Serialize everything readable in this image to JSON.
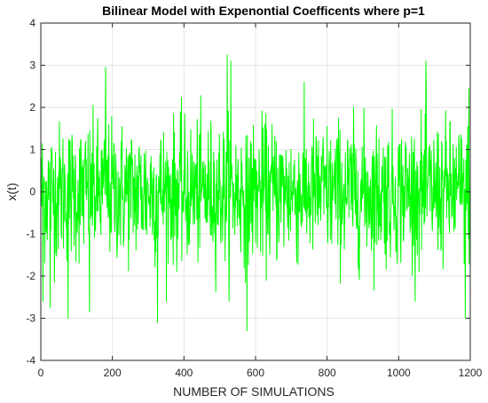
{
  "chart_data": {
    "type": "line",
    "title": "Bilinear Model with Expenontial Coefficents where p=1",
    "xlabel": "NUMBER OF SIMULATIONS",
    "ylabel": "x(t)",
    "xlim": [
      0,
      1200
    ],
    "ylim": [
      -4,
      4
    ],
    "xticks": [
      0,
      200,
      400,
      600,
      800,
      1000,
      1200
    ],
    "yticks": [
      -4,
      -3,
      -2,
      -1,
      0,
      1,
      2,
      3,
      4
    ],
    "xtick_labels": [
      "0",
      "200",
      "400",
      "600",
      "800",
      "1000",
      "1200"
    ],
    "ytick_labels": [
      "-4",
      "-3",
      "-2",
      "-1",
      "0",
      "1",
      "2",
      "3",
      "4"
    ],
    "grid": true,
    "legend": "none",
    "series_color": "#00ff00",
    "n_points": 1200,
    "notable_points": [
      {
        "x": 5,
        "y": -2.6
      },
      {
        "x": 25,
        "y": -2.75
      },
      {
        "x": 75,
        "y": -3.0
      },
      {
        "x": 135,
        "y": -2.85
      },
      {
        "x": 180,
        "y": 2.95
      },
      {
        "x": 325,
        "y": -3.1
      },
      {
        "x": 520,
        "y": 3.25
      },
      {
        "x": 530,
        "y": 3.1
      },
      {
        "x": 575,
        "y": -3.3
      },
      {
        "x": 1075,
        "y": 3.1
      },
      {
        "x": 1185,
        "y": -3.0
      },
      {
        "x": 1195,
        "y": 2.45
      }
    ],
    "approx_range": [
      -3.3,
      3.25
    ]
  }
}
